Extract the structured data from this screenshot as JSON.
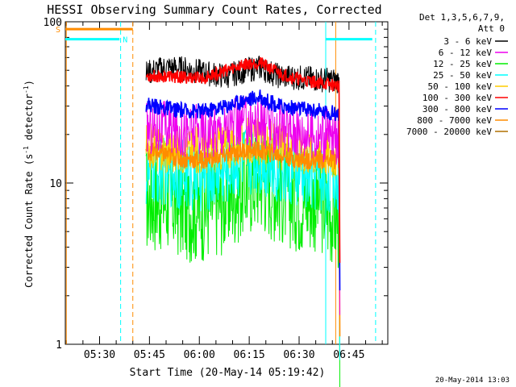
{
  "chart_data": {
    "type": "line",
    "title": "HESSI Observing Summary Count Rates, Corrected",
    "xlabel": "Start Time (20-May-14 05:19:42)",
    "ylabel_main": "Corrected Count Rate (s",
    "ylabel_sup": "-1",
    "ylabel_mid": " detector",
    "ylabel_end": ")",
    "y_scale": "log",
    "ylim": [
      1,
      100
    ],
    "xlim": [
      "05:19:42",
      "06:56:40"
    ],
    "x_ticks": [
      "05:30",
      "05:45",
      "06:00",
      "06:15",
      "06:30",
      "06:45"
    ],
    "y_ticks": [
      "1",
      "10",
      "100"
    ],
    "legend_header": [
      "Det 1,3,5,6,7,9,",
      "Att 0"
    ],
    "legend_position": "top-right",
    "timestamp": "20-May-2014 13:03",
    "x_time_points": [
      "05:44",
      "05:50",
      "05:56",
      "06:02",
      "06:08",
      "06:14",
      "06:18",
      "06:24",
      "06:30",
      "06:36",
      "06:42"
    ],
    "series": [
      {
        "name": "3 - 6 keV",
        "color": "#000000",
        "values": [
          48,
          52,
          51,
          48,
          46,
          50,
          52,
          46,
          45,
          44,
          43
        ]
      },
      {
        "name": "6 - 12 keV",
        "color": "#ee00ee",
        "values": [
          22,
          22,
          21,
          21,
          22,
          24,
          24,
          22,
          21,
          20,
          19
        ]
      },
      {
        "name": "12 - 25 keV",
        "color": "#00ee00",
        "values": [
          8,
          8,
          7,
          7,
          8,
          10,
          11,
          9,
          8,
          8,
          6
        ]
      },
      {
        "name": "25 - 50 keV",
        "color": "#00ffff",
        "values": [
          11,
          12,
          11,
          11,
          12,
          14,
          14,
          12,
          11,
          11,
          10
        ]
      },
      {
        "name": "50 - 100 keV",
        "color": "#ffcc00",
        "values": [
          17,
          16,
          16,
          16,
          17,
          18,
          18,
          17,
          16,
          16,
          15
        ]
      },
      {
        "name": "100 - 300 keV",
        "color": "#ff0000",
        "values": [
          46,
          46,
          45,
          45,
          50,
          55,
          56,
          48,
          44,
          42,
          40
        ]
      },
      {
        "name": "300 - 800 keV",
        "color": "#0000ff",
        "values": [
          31,
          29,
          28,
          28,
          30,
          33,
          34,
          30,
          29,
          28,
          27
        ]
      },
      {
        "name": "800 - 7000 keV",
        "color": "#ff8c00",
        "values": [
          16,
          15,
          14,
          14,
          15,
          16,
          16,
          15,
          14,
          14,
          14
        ]
      },
      {
        "name": "7000 - 20000 keV",
        "color": "#b07000",
        "values": []
      }
    ],
    "flags": [
      {
        "label": "S",
        "color": "#ff8c00",
        "start": "05:19:42",
        "end": "05:40:00",
        "level": 90
      },
      {
        "label": "N",
        "color": "#00ffff",
        "start": "05:19:42",
        "end": "05:36:00",
        "level": 78
      },
      {
        "label": "",
        "color": "#00ffff",
        "start": "06:38:00",
        "end": "06:52:00",
        "level": 78
      }
    ],
    "vertical_markers": [
      {
        "time": "05:20:00",
        "color": "#ff8c00",
        "style": "solid"
      },
      {
        "time": "05:36:20",
        "color": "#00ffff",
        "style": "dashed"
      },
      {
        "time": "05:40:00",
        "color": "#ff8c00",
        "style": "dashed"
      },
      {
        "time": "06:38:00",
        "color": "#00ffff",
        "style": "solid"
      },
      {
        "time": "06:41:00",
        "color": "#ff8c00",
        "style": "solid"
      },
      {
        "time": "06:53:00",
        "color": "#00ffff",
        "style": "dashed"
      }
    ]
  }
}
